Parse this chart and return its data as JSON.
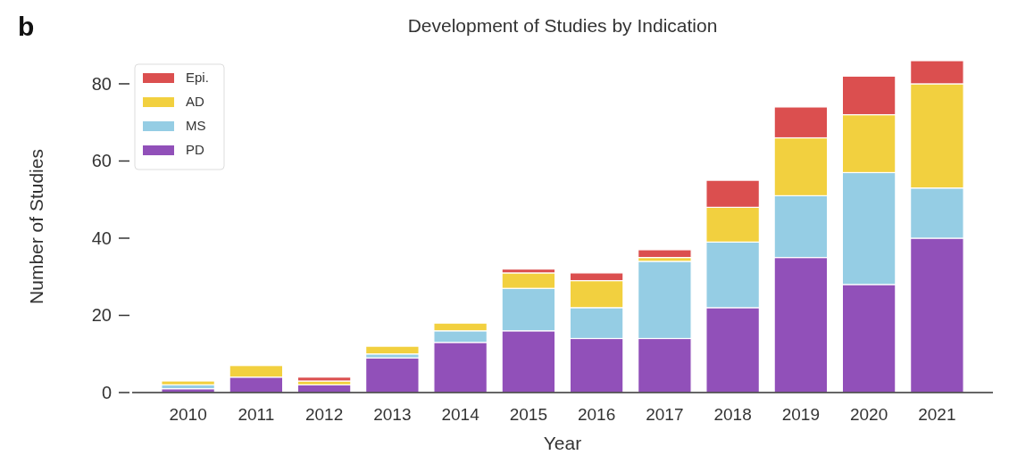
{
  "chart_data": {
    "type": "bar",
    "title": "Development of Studies by Indication",
    "xlabel": "Year",
    "ylabel": "Number of Studies",
    "annotations": [
      "b"
    ],
    "categories": [
      "2010",
      "2011",
      "2012",
      "2013",
      "2014",
      "2015",
      "2016",
      "2017",
      "2018",
      "2019",
      "2020",
      "2021"
    ],
    "stacked": true,
    "series": [
      {
        "name": "PD",
        "color": "#9150b9",
        "values": [
          1,
          4,
          2,
          9,
          13,
          16,
          14,
          14,
          22,
          35,
          28,
          40
        ]
      },
      {
        "name": "MS",
        "color": "#95cde4",
        "values": [
          1,
          0,
          0,
          1,
          3,
          11,
          8,
          20,
          17,
          16,
          29,
          13
        ]
      },
      {
        "name": "AD",
        "color": "#f2d03f",
        "values": [
          1,
          3,
          1,
          2,
          2,
          4,
          7,
          1,
          9,
          15,
          15,
          27
        ]
      },
      {
        "name": "Epi.",
        "color": "#db4f4f",
        "values": [
          0,
          0,
          1,
          0,
          0,
          1,
          2,
          2,
          7,
          8,
          10,
          6
        ]
      }
    ],
    "ylim": [
      0,
      86
    ],
    "yticks": [
      0,
      20,
      40,
      60,
      80
    ],
    "grid": false,
    "legend": "top left"
  }
}
